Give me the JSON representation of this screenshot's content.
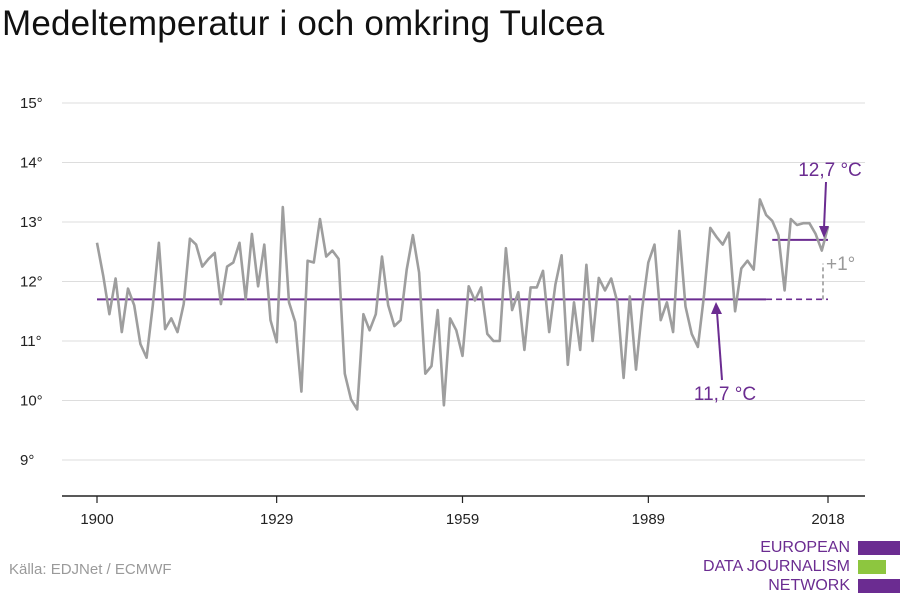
{
  "title": "Medeltemperatur i och omkring Tulcea",
  "source": "Källa: EDJNet / ECMWF",
  "logo": {
    "line1": "EUROPEAN",
    "line2": "DATA JOURNALISM",
    "line3": "NETWORK"
  },
  "colors": {
    "series": "#9e9e9e",
    "accent": "#6b2c91",
    "grid": "#dddddd",
    "axis": "#222222",
    "logo_green": "#8dc63f"
  },
  "chart_data": {
    "type": "line",
    "xlim": [
      1900,
      2018
    ],
    "ylim": [
      9,
      15
    ],
    "x_ticks": [
      1900,
      1929,
      1959,
      1989,
      2018
    ],
    "x_tick_labels": [
      "1900",
      "1929",
      "1959",
      "1989",
      "2018"
    ],
    "y_ticks": [
      9,
      10,
      11,
      12,
      13,
      14,
      15
    ],
    "y_tick_labels": [
      "9°",
      "10°",
      "11°",
      "12°",
      "13°",
      "14°",
      "15°"
    ],
    "grid": true,
    "series": [
      {
        "x": [
          1900,
          1901,
          1902,
          1903,
          1904,
          1905,
          1906,
          1907,
          1908,
          1909,
          1910,
          1911,
          1912,
          1913,
          1914,
          1915,
          1916,
          1917,
          1918,
          1919,
          1920,
          1921,
          1922,
          1923,
          1924,
          1925,
          1926,
          1927,
          1928,
          1929,
          1930,
          1931,
          1932,
          1933,
          1934,
          1935,
          1936,
          1937,
          1938,
          1939,
          1940,
          1941,
          1942,
          1943,
          1944,
          1945,
          1946,
          1947,
          1948,
          1949,
          1950,
          1951,
          1952,
          1953,
          1954,
          1955,
          1956,
          1957,
          1958,
          1959,
          1960,
          1961,
          1962,
          1963,
          1964,
          1965,
          1966,
          1967,
          1968,
          1969,
          1970,
          1971,
          1972,
          1973,
          1974,
          1975,
          1976,
          1977,
          1978,
          1979,
          1980,
          1981,
          1982,
          1983,
          1984,
          1985,
          1986,
          1987,
          1988,
          1989,
          1990,
          1991,
          1992,
          1993,
          1994,
          1995,
          1996,
          1997,
          1998,
          1999,
          2000,
          2001,
          2002,
          2003,
          2004,
          2005,
          2006,
          2007,
          2008,
          2009,
          2010,
          2011,
          2012,
          2013,
          2014,
          2015,
          2016,
          2017,
          2018
        ],
        "values": [
          12.65,
          12.1,
          11.45,
          12.05,
          11.15,
          11.88,
          11.6,
          10.95,
          10.72,
          11.6,
          12.65,
          11.2,
          11.38,
          11.15,
          11.62,
          12.72,
          12.62,
          12.25,
          12.38,
          12.48,
          11.62,
          12.25,
          12.32,
          12.65,
          11.7,
          12.8,
          11.92,
          12.62,
          11.35,
          10.98,
          13.25,
          11.65,
          11.32,
          10.15,
          12.35,
          12.32,
          13.05,
          12.42,
          12.52,
          12.38,
          10.45,
          10.02,
          9.85,
          11.45,
          11.18,
          11.45,
          12.42,
          11.6,
          11.25,
          11.35,
          12.2,
          12.78,
          12.15,
          10.45,
          10.58,
          11.52,
          9.92,
          11.38,
          11.18,
          10.75,
          11.92,
          11.68,
          11.9,
          11.12,
          11.0,
          11.0,
          12.56,
          11.52,
          11.82,
          10.85,
          11.9,
          11.9,
          12.18,
          11.15,
          11.95,
          12.44,
          10.6,
          11.65,
          10.85,
          12.28,
          11.0,
          12.06,
          11.85,
          12.05,
          11.65,
          10.38,
          11.75,
          10.52,
          11.55,
          12.32,
          12.62,
          11.35,
          11.65,
          11.15,
          12.85,
          11.58,
          11.12,
          10.9,
          11.78,
          12.9,
          12.75,
          12.62,
          12.82,
          11.5,
          12.22,
          12.35,
          12.2,
          13.38,
          13.12,
          13.02,
          12.78,
          11.85,
          13.05,
          12.95,
          12.98,
          12.98,
          12.8,
          12.52,
          12.92
        ]
      }
    ],
    "baseline": {
      "value": 11.7,
      "label": "11,7 °C",
      "x_range": [
        1900,
        2018
      ]
    },
    "recent_mean": {
      "value": 12.7,
      "label": "12,7 °C",
      "x_range": [
        2009,
        2018
      ]
    },
    "difference_label": "+1°"
  }
}
